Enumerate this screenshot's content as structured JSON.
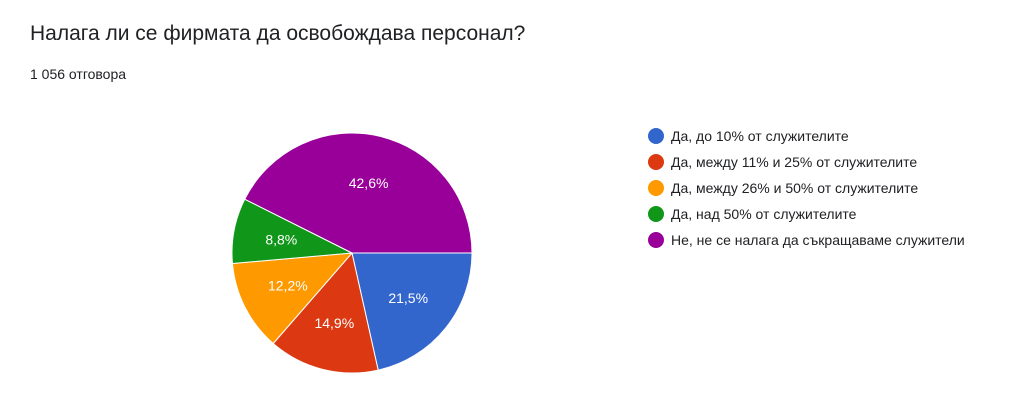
{
  "header": {
    "title": "Налага ли се фирмата да освобождава персонал?",
    "responses": "1 056 отговора"
  },
  "chart_data": {
    "type": "pie",
    "title": "Налага ли се фирмата да освобождава персонал?",
    "legend_position": "right",
    "slices": [
      {
        "label": "Да, до 10% от служителите",
        "value": 21.5,
        "display": "21,5%",
        "color": "#3366cc"
      },
      {
        "label": "Да, между 11% и 25% от служителите",
        "value": 14.9,
        "display": "14,9%",
        "color": "#dc3912"
      },
      {
        "label": "Да, между 26% и 50% от служителите",
        "value": 12.2,
        "display": "12,2%",
        "color": "#ff9900"
      },
      {
        "label": "Да, над 50% от служителите",
        "value": 8.8,
        "display": "8,8%",
        "color": "#109618"
      },
      {
        "label": "Не, не се налага да съкращаваме служители",
        "value": 42.6,
        "display": "42,6%",
        "color": "#990099"
      }
    ]
  }
}
